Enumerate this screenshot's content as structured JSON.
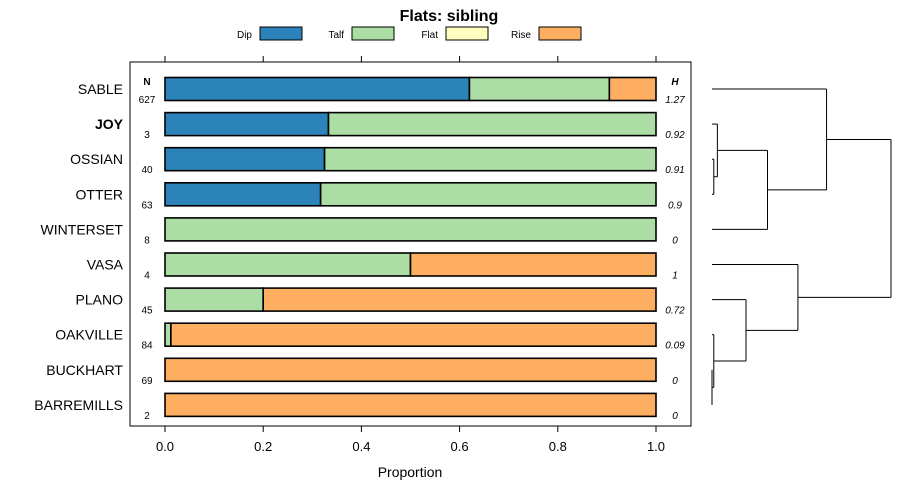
{
  "chart_data": {
    "type": "bar",
    "orientation": "horizontal",
    "stacked": true,
    "title": "Flats: sibling",
    "xlabel": "Proportion",
    "ylabel": "",
    "xlim": [
      0,
      1
    ],
    "xticks": [
      "0.0",
      "0.2",
      "0.4",
      "0.6",
      "0.8",
      "1.0"
    ],
    "legend": {
      "position": "top",
      "entries": [
        {
          "name": "Dip",
          "color": "#2b83ba"
        },
        {
          "name": "Talf",
          "color": "#abdda4"
        },
        {
          "name": "Flat",
          "color": "#ffffbf"
        },
        {
          "name": "Rise",
          "color": "#fdae61"
        }
      ]
    },
    "n_header": "N",
    "h_header": "H",
    "categories": [
      "SABLE",
      "JOY",
      "OSSIAN",
      "OTTER",
      "WINTERSET",
      "VASA",
      "PLANO",
      "OAKVILLE",
      "BUCKHART",
      "BARREMILLS"
    ],
    "highlighted": "JOY",
    "n": [
      "627",
      "3",
      "40",
      "63",
      "8",
      "4",
      "45",
      "84",
      "69",
      "2"
    ],
    "h": [
      "1.27",
      "0.92",
      "0.91",
      "0.9",
      "0",
      "1",
      "0.72",
      "0.09",
      "0",
      "0"
    ],
    "series": [
      {
        "name": "Dip",
        "values": [
          0.62,
          0.333,
          0.325,
          0.317,
          0,
          0,
          0,
          0,
          0,
          0
        ]
      },
      {
        "name": "Talf",
        "values": [
          0.285,
          0.667,
          0.675,
          0.683,
          1,
          0.5,
          0.2,
          0.012,
          0,
          0
        ]
      },
      {
        "name": "Flat",
        "values": [
          0,
          0,
          0,
          0,
          0,
          0,
          0,
          0,
          0,
          0
        ]
      },
      {
        "name": "Rise",
        "values": [
          0.095,
          0,
          0,
          0,
          0,
          0.5,
          0.8,
          0.988,
          1,
          1
        ]
      }
    ],
    "dendrogram": {
      "leaf_order": [
        "SABLE",
        "JOY",
        "OSSIAN",
        "OTTER",
        "WINTERSET",
        "VASA",
        "PLANO",
        "OAKVILLE",
        "BUCKHART",
        "BARREMILLS"
      ],
      "merges": [
        {
          "left": "OSSIAN",
          "right": "OTTER",
          "height": 0.01
        },
        {
          "left": "JOY",
          "right": "OSSIAN+OTTER",
          "height": 0.03
        },
        {
          "left": "JOY+OSSIAN+OTTER",
          "right": "WINTERSET",
          "height": 0.31
        },
        {
          "left": "SABLE",
          "right": "JOY+OSSIAN+OTTER+WINTERSET",
          "height": 0.64
        },
        {
          "left": "BUCKHART",
          "right": "BARREMILLS",
          "height": 0.0
        },
        {
          "left": "OAKVILLE",
          "right": "BUCKHART+BARREMILLS",
          "height": 0.01
        },
        {
          "left": "OAKVILLE+BUCKHART+BARREMILLS",
          "right": "PLANO",
          "height": 0.19
        },
        {
          "left": "VASA",
          "right": "PLANO+OAKVILLE+BUCKHART+BARREMILLS",
          "height": 0.48
        },
        {
          "left": "SABLE-group",
          "right": "VASA-group",
          "height": 1.0
        }
      ]
    }
  }
}
